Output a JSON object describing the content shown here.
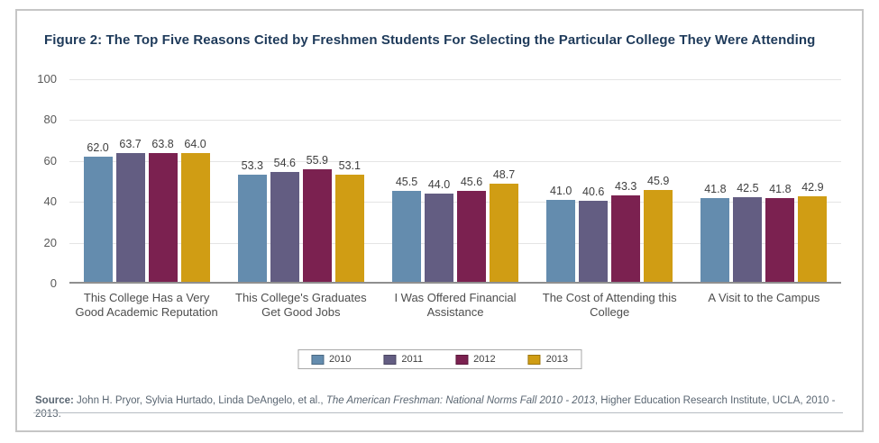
{
  "figure": {
    "title": "Figure 2: The Top Five Reasons Cited by Freshmen Students For Selecting the Particular College They Were Attending"
  },
  "chart_data": {
    "type": "bar",
    "title": "Figure 2: The Top Five Reasons Cited by Freshmen Students For Selecting the Particular College They Were Attending",
    "categories": [
      "This College Has a Very Good Academic Reputation",
      "This College's Graduates Get Good Jobs",
      "I Was Offered Financial Assistance",
      "The Cost of Attending this College",
      "A Visit to the Campus"
    ],
    "series": [
      {
        "name": "2010",
        "color": "#648cae",
        "values": [
          62.0,
          53.3,
          45.5,
          41.0,
          41.8
        ]
      },
      {
        "name": "2011",
        "color": "#635d82",
        "values": [
          63.7,
          54.6,
          44.0,
          40.6,
          42.5
        ]
      },
      {
        "name": "2012",
        "color": "#7b2150",
        "values": [
          63.8,
          55.9,
          45.6,
          43.3,
          41.8
        ]
      },
      {
        "name": "2013",
        "color": "#d09d14",
        "values": [
          64.0,
          53.1,
          48.7,
          45.9,
          42.9
        ]
      }
    ],
    "ylim": [
      0,
      100
    ],
    "yticks": [
      0,
      20,
      40,
      60,
      80,
      100
    ],
    "grid": true,
    "value_labels": true,
    "value_label_decimals": 1,
    "legend_position": "bottom"
  },
  "source": {
    "label": "Source:",
    "before": " John H. Pryor, Sylvia Hurtado, Linda DeAngelo, et al., ",
    "italic": "The American Freshman: National Norms Fall 2010 - 2013",
    "after": ", Higher Education Research Institute, UCLA, 2010 - 2013."
  }
}
